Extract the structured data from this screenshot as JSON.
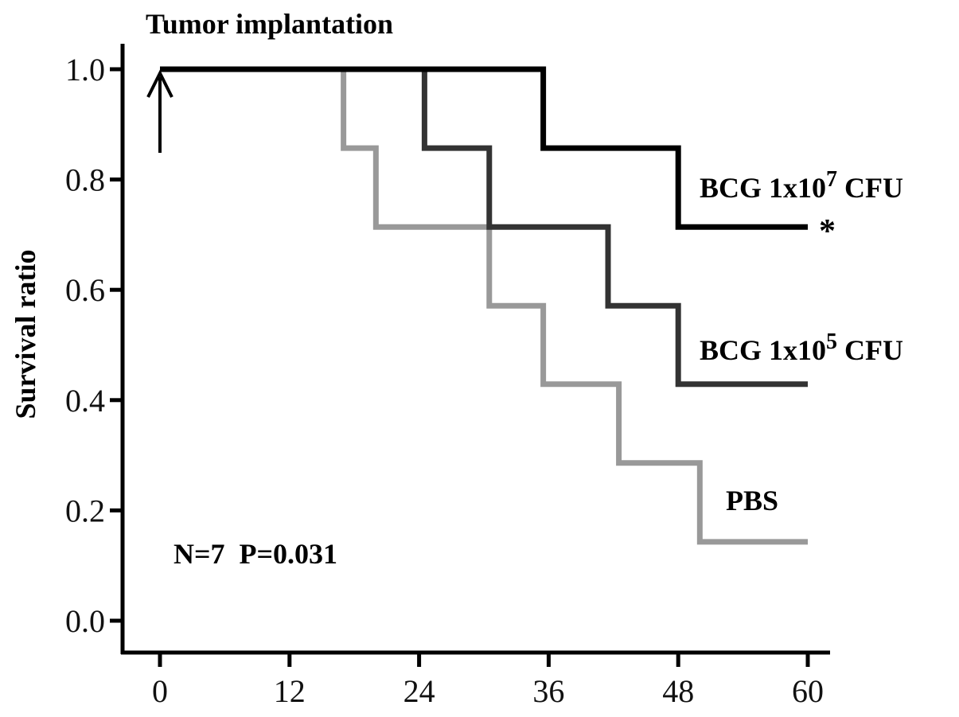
{
  "chart_data": {
    "type": "line",
    "subtype": "step",
    "title": "Tumor implantation",
    "ylabel": "Survival ratio",
    "xlabel": "",
    "xlim": [
      0,
      60
    ],
    "ylim": [
      0,
      1
    ],
    "xticks": [
      0,
      12,
      24,
      36,
      48,
      60
    ],
    "xtick_labels": [
      "0",
      "12",
      "24",
      "36",
      "48",
      "60"
    ],
    "yticks": [
      0,
      0.2,
      0.4,
      0.6,
      0.8,
      1.0
    ],
    "ytick_labels": [
      "0.0",
      "0.2",
      "0.4",
      "0.6",
      "0.8",
      "1.0"
    ],
    "grid": false,
    "series": [
      {
        "name": "BCG 1x10^7 CFU",
        "label_main": "BCG 1x10",
        "label_sup": "7",
        "label_tail": " CFU",
        "color": "#000000",
        "marker": "*",
        "x": [
          0,
          35.5,
          35.5,
          48,
          48,
          60
        ],
        "y": [
          1.0,
          1.0,
          0.857,
          0.857,
          0.714,
          0.714
        ]
      },
      {
        "name": "BCG 1x10^5 CFU",
        "label_main": "BCG 1x10",
        "label_sup": "5",
        "label_tail": " CFU",
        "color": "#333333",
        "x": [
          0,
          24.5,
          24.5,
          30.5,
          30.5,
          41.5,
          41.5,
          48,
          48,
          60
        ],
        "y": [
          1.0,
          1.0,
          0.857,
          0.857,
          0.714,
          0.714,
          0.571,
          0.571,
          0.429,
          0.429
        ]
      },
      {
        "name": "PBS",
        "label_main": "PBS",
        "label_sup": "",
        "label_tail": "",
        "color": "#999999",
        "x": [
          0,
          17,
          17,
          20,
          20,
          30.5,
          30.5,
          35.5,
          35.5,
          42.5,
          42.5,
          50,
          50,
          60
        ],
        "y": [
          1.0,
          1.0,
          0.857,
          0.857,
          0.714,
          0.714,
          0.571,
          0.571,
          0.429,
          0.429,
          0.286,
          0.286,
          0.143,
          0.143
        ]
      }
    ],
    "annotations": {
      "stats": "N=7  P=0.031"
    }
  }
}
